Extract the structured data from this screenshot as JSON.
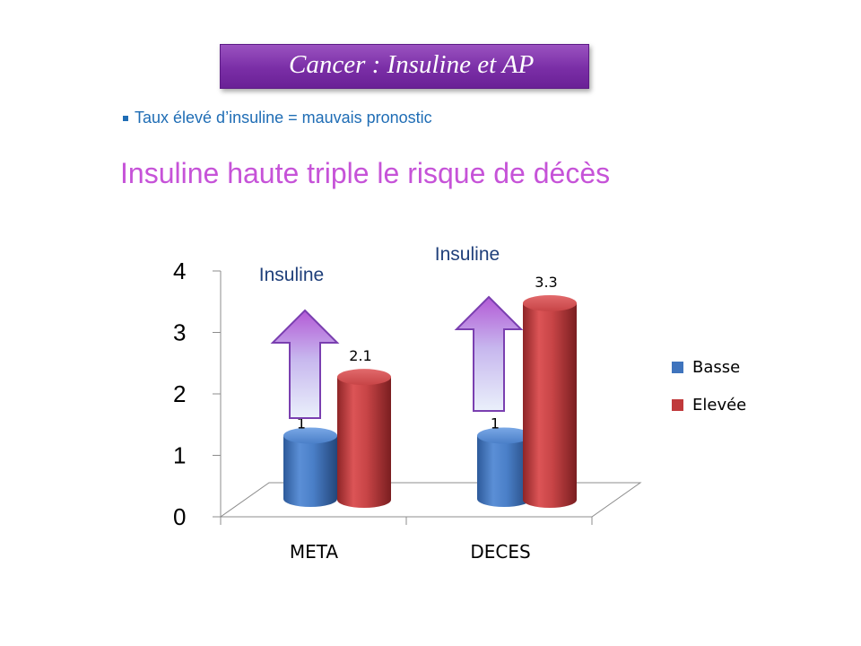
{
  "slide": {
    "title": "Cancer : Insuline et AP",
    "bullet": "Taux élevé d’insuline = mauvais pronostic",
    "headline": "Insuline haute triple le risque de décès"
  },
  "colors": {
    "title_box": "#7a2ea6",
    "bullet_text": "#1f6db5",
    "headline_text": "#c653d8",
    "basse": "#3f74bd",
    "elevee": "#c0393b",
    "arrow_border": "#7a3fb0"
  },
  "chart_data": {
    "type": "bar",
    "style": "3d-cylinder",
    "categories": [
      "META",
      "DECES"
    ],
    "series": [
      {
        "name": "Basse",
        "values": [
          1,
          1
        ],
        "color": "#3f74bd"
      },
      {
        "name": "Elevée",
        "values": [
          2.1,
          3.3
        ],
        "color": "#c0393b"
      }
    ],
    "y_ticks": [
      "0",
      "1",
      "2",
      "3",
      "4"
    ],
    "ylim": [
      0,
      4
    ],
    "legend_position": "right",
    "annotations": [
      "Insuline",
      "Insuline"
    ],
    "arrow_icons": [
      "up-arrow-icon",
      "up-arrow-icon"
    ],
    "grid": false
  }
}
